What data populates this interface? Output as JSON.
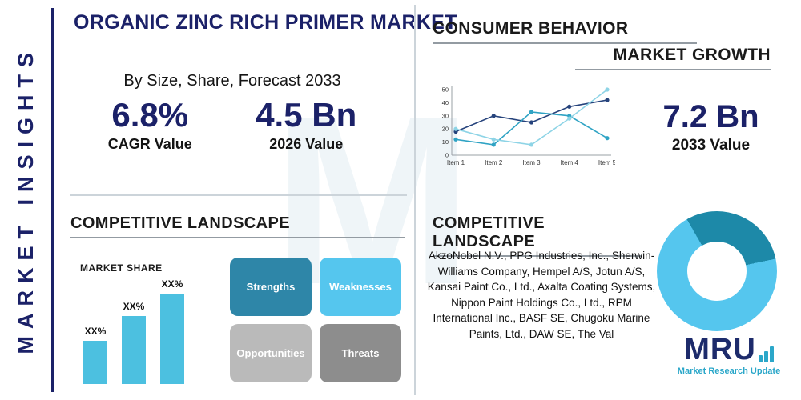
{
  "page": {
    "title": "ORGANIC ZINC RICH PRIMER MARKET",
    "watermark": "M"
  },
  "sidebar": {
    "label": "MARKET INSIGHTS"
  },
  "insights": {
    "subtitle": "By Size, Share, Forecast 2033",
    "stats": [
      {
        "value": "6.8%",
        "label": "CAGR Value"
      },
      {
        "value": "4.5 Bn",
        "label": "2026 Value"
      }
    ]
  },
  "consumer": {
    "title": "CONSUMER BEHAVIOR",
    "subtitle": "MARKET GROWTH",
    "stat_value": "7.2 Bn",
    "stat_label": "2033 Value"
  },
  "competitive_left": {
    "title": "COMPETITIVE LANDSCAPE"
  },
  "competitive_right": {
    "title": "COMPETITIVE LANDSCAPE",
    "companies": "AkzoNobel N.V., PPG Industries, Inc., Sherwin-Williams Company, Hempel A/S, Jotun A/S, Kansai Paint Co., Ltd., Axalta Coating Systems, Nippon Paint Holdings Co., Ltd., RPM International Inc., BASF SE, Chugoku Marine Paints, Ltd., DAW SE, The Val"
  },
  "swot": {
    "items": [
      {
        "label": "Strengths",
        "color": "#2e86a8",
        "text": "#ffffff"
      },
      {
        "label": "Weaknesses",
        "color": "#55c6ee",
        "text": "#ffffff"
      },
      {
        "label": "Opportunities",
        "color": "#bababa",
        "text": "#ffffff"
      },
      {
        "label": "Threats",
        "color": "#8d8d8d",
        "text": "#ffffff"
      }
    ]
  },
  "logo": {
    "text": "MRU",
    "tagline": "Market Research Update"
  },
  "chart_data": [
    {
      "id": "market-growth-line",
      "type": "line",
      "title": "",
      "x": [
        "Item 1",
        "Item 2",
        "Item 3",
        "Item 4",
        "Item 5"
      ],
      "series": [
        {
          "name": "series-navy",
          "color": "#26437c",
          "values": [
            18,
            30,
            25,
            37,
            42
          ]
        },
        {
          "name": "series-teal",
          "color": "#2fa3c4",
          "values": [
            12,
            8,
            33,
            30,
            13
          ]
        },
        {
          "name": "series-lightblue",
          "color": "#8ed4e6",
          "values": [
            20,
            12,
            8,
            28,
            50
          ]
        }
      ],
      "ylim": [
        0,
        50
      ],
      "yticks": [
        0,
        10,
        20,
        30,
        40,
        50
      ],
      "grid": false,
      "legend": "none"
    },
    {
      "id": "market-share-bar",
      "type": "bar",
      "title": "MARKET SHARE",
      "categories": [
        "bar-1",
        "bar-2",
        "bar-3"
      ],
      "values": [
        35,
        55,
        73
      ],
      "labels": [
        "XX%",
        "XX%",
        "XX%"
      ],
      "bar_color": "#4cc0e0"
    },
    {
      "id": "landscape-donut",
      "type": "pie",
      "donut": true,
      "slices": [
        {
          "label": "segment-dark",
          "value": 30,
          "color": "#1d89a8"
        },
        {
          "label": "segment-light",
          "value": 70,
          "color": "#55c6ee"
        }
      ]
    }
  ]
}
